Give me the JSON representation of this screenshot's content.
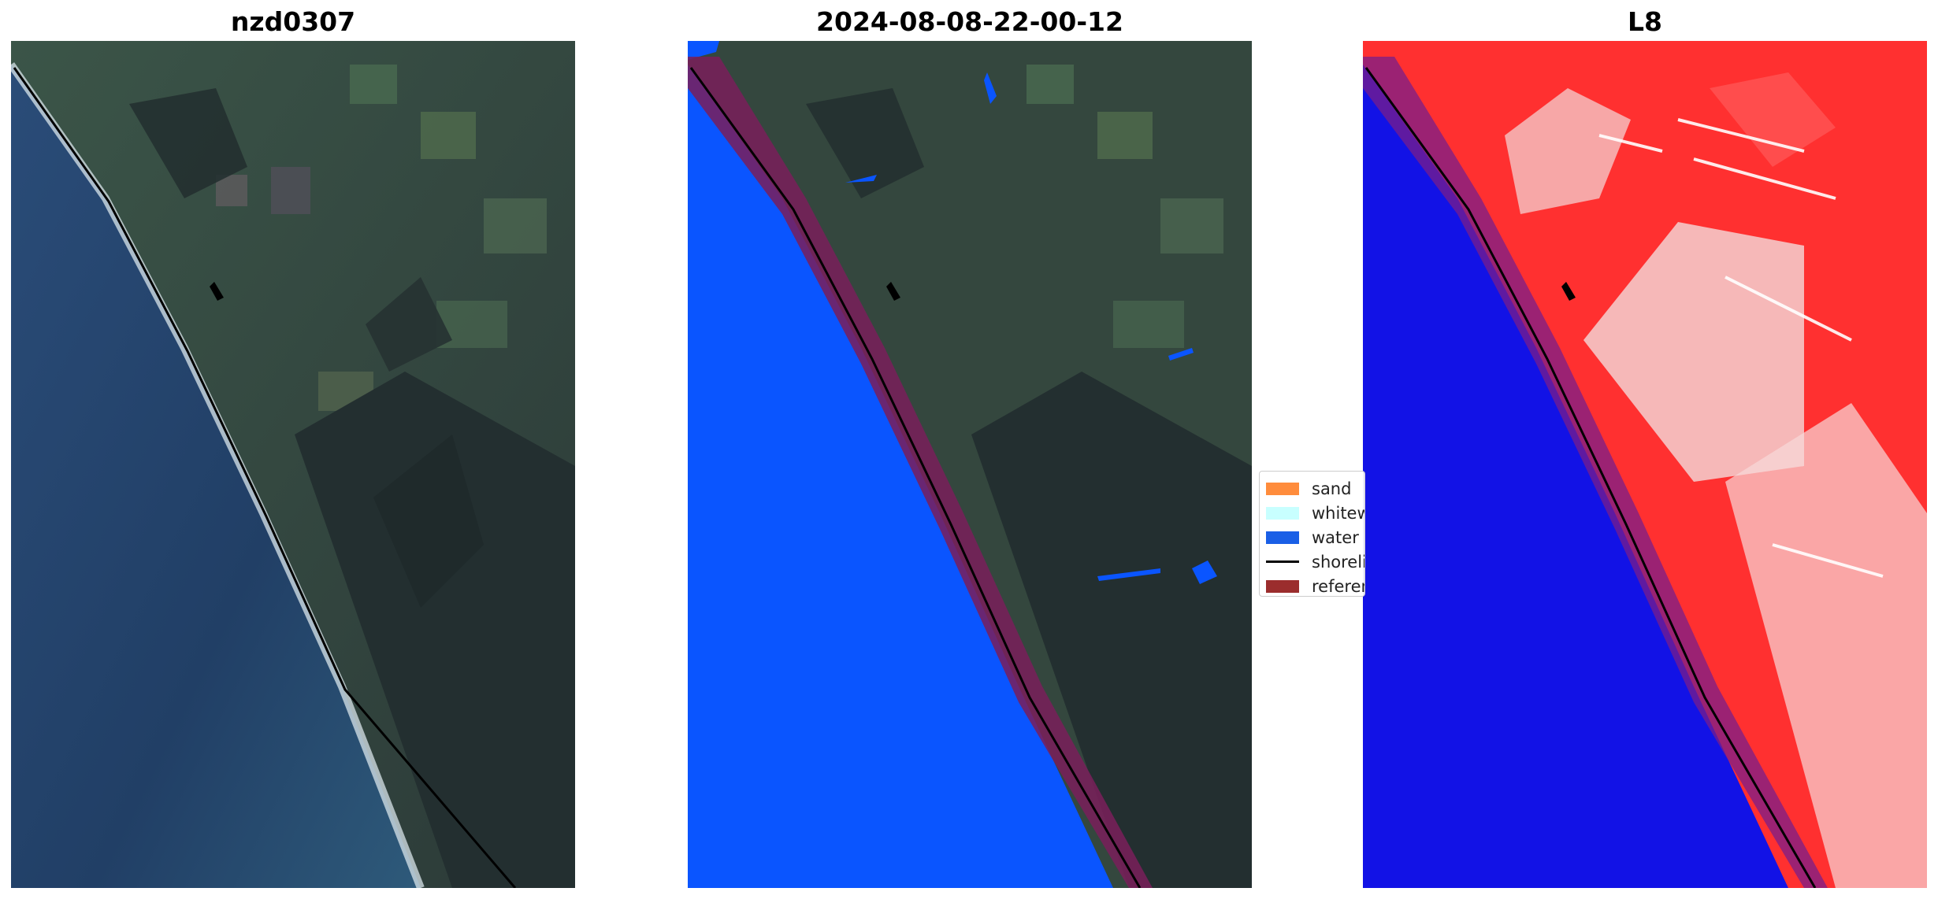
{
  "panels": [
    {
      "title": "nzd0307"
    },
    {
      "title": "2024-08-08-22-00-12"
    },
    {
      "title": "L8"
    }
  ],
  "legend": {
    "items": [
      {
        "label": "sand",
        "color": "#ff8c3c",
        "kind": "patch"
      },
      {
        "label": "whitewater",
        "color": "#c8ffff",
        "kind": "patch"
      },
      {
        "label": "water",
        "color": "#1a5fe6",
        "kind": "patch"
      },
      {
        "label": "shoreline",
        "color": "#000000",
        "kind": "line"
      },
      {
        "label": "reference shoreline buffer",
        "color": "#9b2d2d",
        "kind": "patch"
      }
    ]
  },
  "colors": {
    "ocean_rgb": "#24406a",
    "land_rgb": "#34473e",
    "forest_rgb": "#1f2b2b",
    "classified_water": "#0a55ff",
    "buffer": "#7a1e5a",
    "index_land": "#ff2424",
    "index_water": "#1010e8"
  }
}
